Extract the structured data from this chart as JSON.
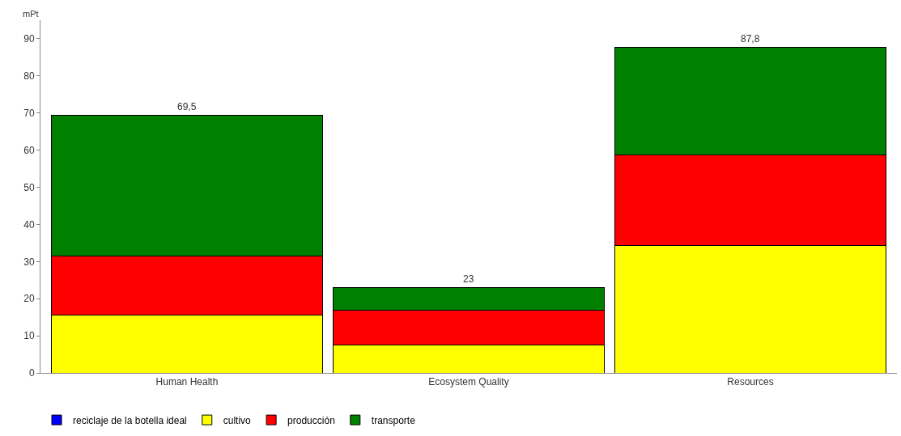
{
  "chart_data": {
    "type": "bar",
    "stacked": true,
    "ylabel": "mPt",
    "categories": [
      "Human Health",
      "Ecosystem Quality",
      "Resources"
    ],
    "series": [
      {
        "name": "reciclaje de la botella ideal",
        "color": "#0000ff",
        "values": [
          0,
          0,
          0
        ]
      },
      {
        "name": "cultivo",
        "color": "#ffff00",
        "values": [
          15.6,
          7.5,
          34.4
        ]
      },
      {
        "name": "producción",
        "color": "#ff0000",
        "values": [
          15.8,
          9.4,
          24.4
        ]
      },
      {
        "name": "transporte",
        "color": "#008000",
        "values": [
          38.1,
          6.1,
          29.0
        ]
      }
    ],
    "totals": [
      "69,5",
      "23",
      "87,8"
    ],
    "ylim": [
      0,
      95
    ],
    "yticks": [
      0,
      10,
      20,
      30,
      40,
      50,
      60,
      70,
      80,
      90
    ],
    "legend": "bottom left"
  }
}
